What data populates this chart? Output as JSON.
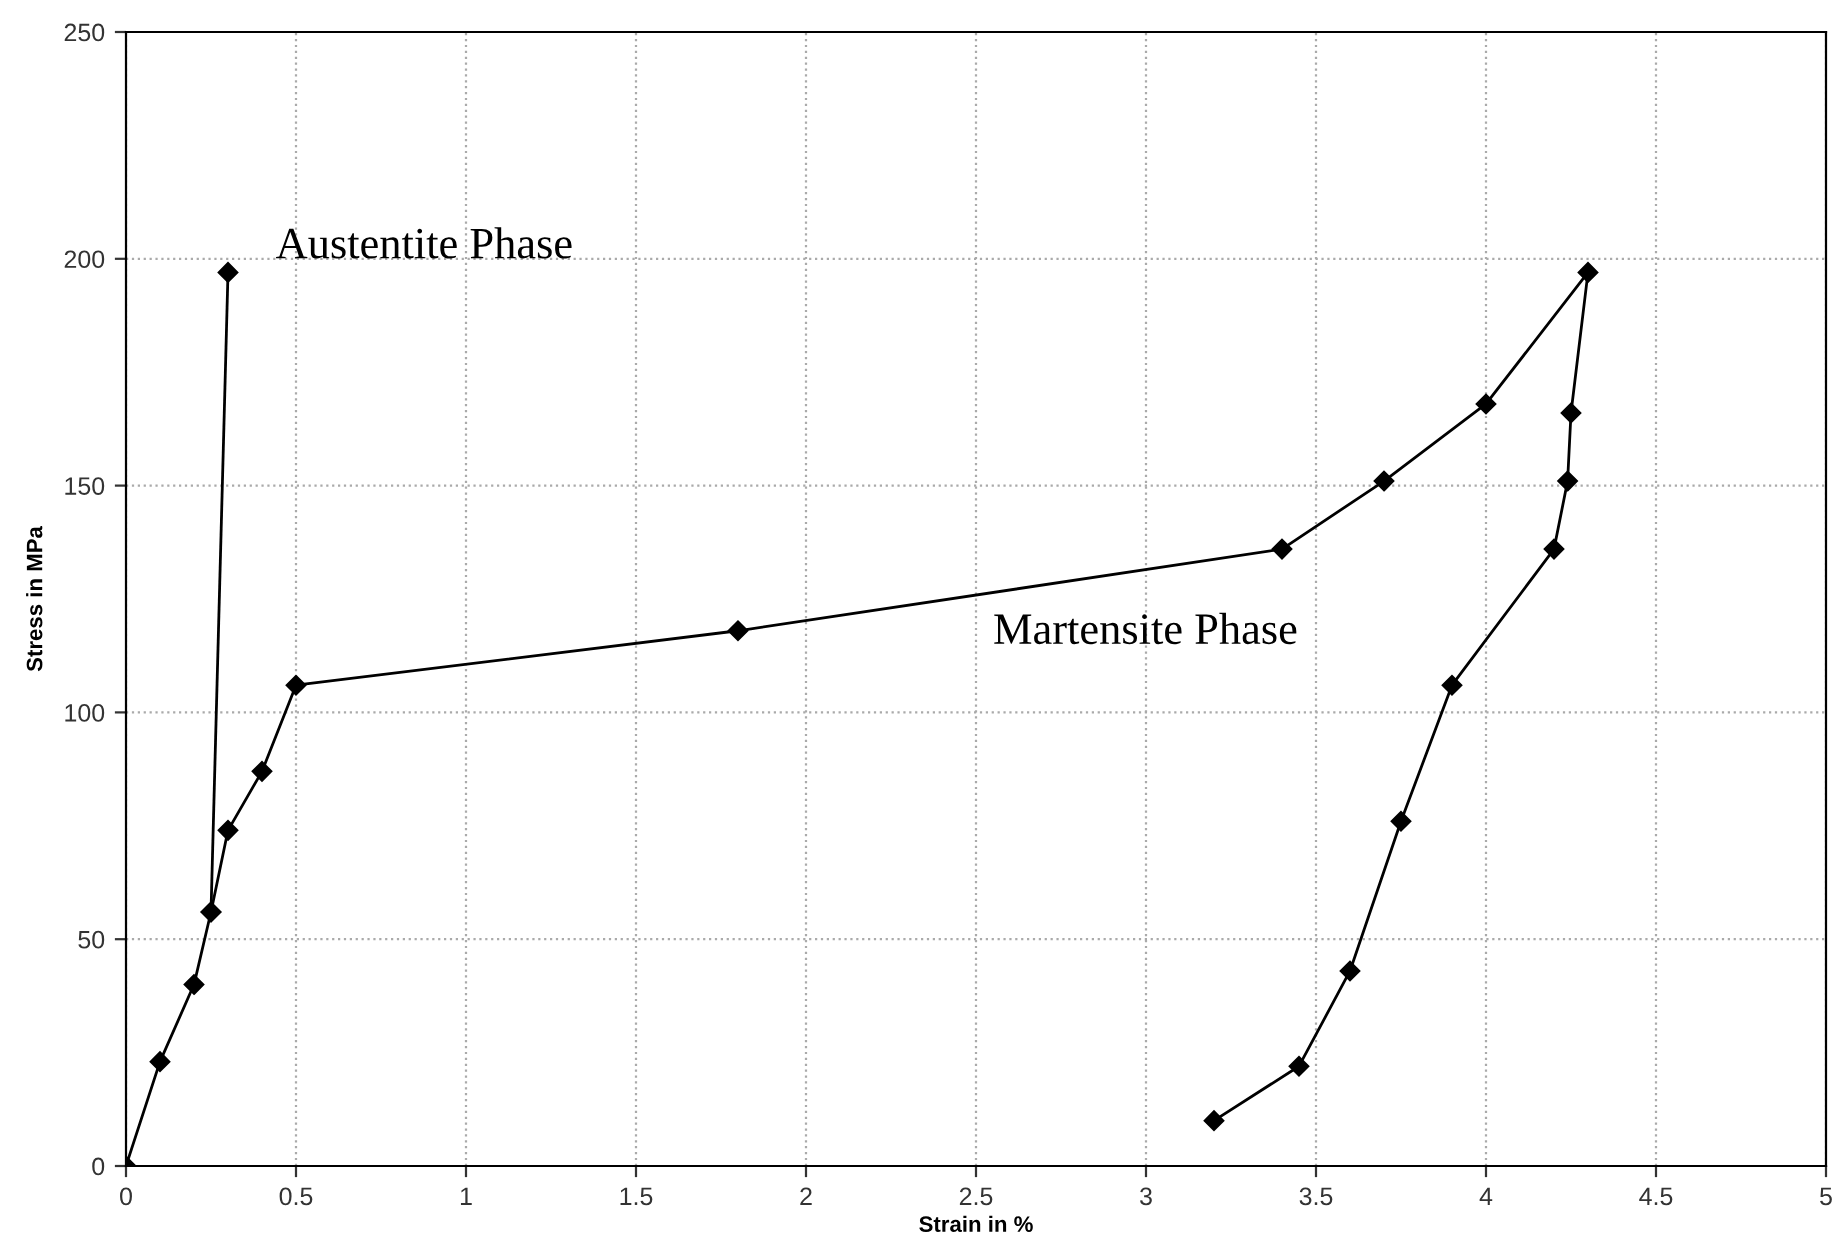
{
  "chart_data": {
    "type": "line",
    "xlabel": "Strain in %",
    "ylabel": "Stress in MPa",
    "series": [
      {
        "color": "#000000",
        "x": [
          0,
          0.1,
          0.2,
          0.25,
          0.3,
          0.4,
          0.5,
          1.8,
          3.4,
          3.7,
          4.0,
          4.3,
          4.25,
          4.24,
          4.2,
          3.9,
          3.75,
          3.6,
          3.45,
          3.2
        ],
        "values": [
          0,
          23,
          40,
          56,
          74,
          87,
          106,
          118,
          136,
          151,
          168,
          197,
          166,
          151,
          136,
          106,
          76,
          43,
          22,
          10
        ]
      },
      {
        "color": "#000000",
        "x": [
          0.25,
          0.3
        ],
        "values": [
          56,
          197
        ]
      }
    ],
    "annotations": [
      "Austentite Phase",
      "Martensite Phase"
    ],
    "xlim": [
      0,
      5
    ],
    "xticks": [
      0,
      0.5,
      1,
      1.5,
      2,
      2.5,
      3,
      3.5,
      4,
      4.5,
      5
    ],
    "ylim": [
      0,
      250
    ],
    "yticks": [
      0,
      50,
      100,
      150,
      200,
      250
    ],
    "grid": true,
    "marker": "diamond",
    "line_style": "solid",
    "legend": false
  }
}
